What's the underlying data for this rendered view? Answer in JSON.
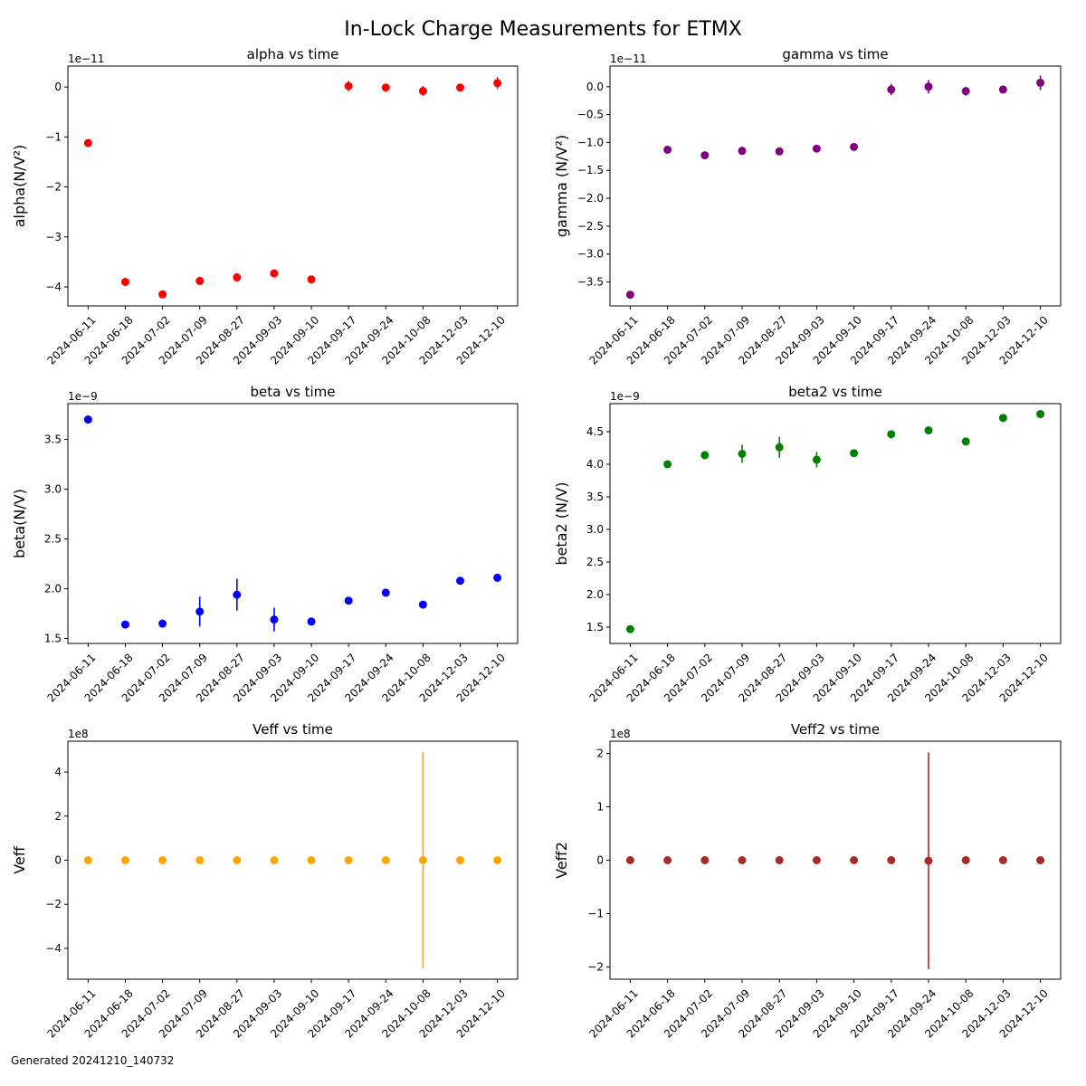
{
  "figure": {
    "title": "In-Lock Charge Measurements for ETMX",
    "footer": "Generated 20241210_140732"
  },
  "chart_data": [
    {
      "type": "scatter",
      "title": "alpha vs time",
      "xlabel": "",
      "ylabel": "alpha(N/V²)",
      "offset_label": "1e−11",
      "color": "#ff0000",
      "categories": [
        "2024-06-11",
        "2024-06-18",
        "2024-07-02",
        "2024-07-09",
        "2024-08-27",
        "2024-09-03",
        "2024-09-10",
        "2024-09-17",
        "2024-09-24",
        "2024-10-08",
        "2024-12-03",
        "2024-12-10"
      ],
      "values": [
        -1.12,
        -3.9,
        -4.15,
        -3.88,
        -3.81,
        -3.73,
        -3.85,
        0.02,
        -0.01,
        -0.08,
        -0.01,
        0.08
      ],
      "errors": [
        0.03,
        0.03,
        0.03,
        0.03,
        0.03,
        0.03,
        0.03,
        0.1,
        0.08,
        0.1,
        0.05,
        0.12
      ],
      "ylim": [
        -4.38,
        0.42
      ],
      "yticks": [
        0,
        -1,
        -2,
        -3,
        -4
      ],
      "ytick_labels": [
        "0",
        "−1",
        "−2",
        "−3",
        "−4"
      ],
      "grid": false
    },
    {
      "type": "scatter",
      "title": "gamma vs time",
      "xlabel": "",
      "ylabel": "gamma (N/V²)",
      "offset_label": "1e−11",
      "color": "#800080",
      "categories": [
        "2024-06-11",
        "2024-06-18",
        "2024-07-02",
        "2024-07-09",
        "2024-08-27",
        "2024-09-03",
        "2024-09-10",
        "2024-09-17",
        "2024-09-24",
        "2024-10-08",
        "2024-12-03",
        "2024-12-10"
      ],
      "values": [
        -3.73,
        -1.13,
        -1.23,
        -1.15,
        -1.16,
        -1.11,
        -1.08,
        -0.05,
        0.0,
        -0.08,
        -0.05,
        0.07
      ],
      "errors": [
        0.02,
        0.03,
        0.03,
        0.03,
        0.03,
        0.03,
        0.03,
        0.1,
        0.12,
        0.08,
        0.05,
        0.13
      ],
      "ylim": [
        -3.93,
        0.37
      ],
      "yticks": [
        0.0,
        -0.5,
        -1.0,
        -1.5,
        -2.0,
        -2.5,
        -3.0,
        -3.5
      ],
      "ytick_labels": [
        "0.0",
        "−0.5",
        "−1.0",
        "−1.5",
        "−2.0",
        "−2.5",
        "−3.0",
        "−3.5"
      ],
      "grid": false
    },
    {
      "type": "scatter",
      "title": "beta vs time",
      "xlabel": "",
      "ylabel": "beta(N/V)",
      "offset_label": "1e−9",
      "color": "#0000ff",
      "categories": [
        "2024-06-11",
        "2024-06-18",
        "2024-07-02",
        "2024-07-09",
        "2024-08-27",
        "2024-09-03",
        "2024-09-10",
        "2024-09-17",
        "2024-09-24",
        "2024-10-08",
        "2024-12-03",
        "2024-12-10"
      ],
      "values": [
        3.7,
        1.64,
        1.65,
        1.77,
        1.94,
        1.69,
        1.67,
        1.88,
        1.96,
        1.84,
        2.08,
        2.11
      ],
      "errors": [
        0.04,
        0.03,
        0.03,
        0.15,
        0.16,
        0.12,
        0.03,
        0.03,
        0.03,
        0.03,
        0.03,
        0.03
      ],
      "ylim": [
        1.45,
        3.86
      ],
      "yticks": [
        1.5,
        2.0,
        2.5,
        3.0,
        3.5
      ],
      "ytick_labels": [
        "1.5",
        "2.0",
        "2.5",
        "3.0",
        "3.5"
      ],
      "grid": false
    },
    {
      "type": "scatter",
      "title": "beta2 vs time",
      "xlabel": "",
      "ylabel": "beta2 (N/V)",
      "offset_label": "1e−9",
      "color": "#008000",
      "categories": [
        "2024-06-11",
        "2024-06-18",
        "2024-07-02",
        "2024-07-09",
        "2024-08-27",
        "2024-09-03",
        "2024-09-10",
        "2024-09-17",
        "2024-09-24",
        "2024-10-08",
        "2024-12-03",
        "2024-12-10"
      ],
      "values": [
        1.47,
        4.0,
        4.14,
        4.16,
        4.26,
        4.07,
        4.17,
        4.46,
        4.52,
        4.35,
        4.71,
        4.77
      ],
      "errors": [
        0.03,
        0.03,
        0.03,
        0.14,
        0.16,
        0.12,
        0.03,
        0.03,
        0.03,
        0.03,
        0.03,
        0.03
      ],
      "ylim": [
        1.25,
        4.93
      ],
      "yticks": [
        1.5,
        2.0,
        2.5,
        3.0,
        3.5,
        4.0,
        4.5
      ],
      "ytick_labels": [
        "1.5",
        "2.0",
        "2.5",
        "3.0",
        "3.5",
        "4.0",
        "4.5"
      ],
      "grid": false
    },
    {
      "type": "scatter",
      "title": "Veff vs time",
      "xlabel": "",
      "ylabel": "Veff",
      "offset_label": "1e8",
      "color": "#ffa500",
      "categories": [
        "2024-06-11",
        "2024-06-18",
        "2024-07-02",
        "2024-07-09",
        "2024-08-27",
        "2024-09-03",
        "2024-09-10",
        "2024-09-17",
        "2024-09-24",
        "2024-10-08",
        "2024-12-03",
        "2024-12-10"
      ],
      "values": [
        0,
        0,
        0,
        0,
        0,
        0,
        0,
        0,
        0,
        0,
        0,
        0
      ],
      "errors": [
        0,
        0,
        0,
        0,
        0,
        0,
        0,
        0,
        0,
        4.9,
        0,
        0
      ],
      "ylim": [
        -5.4,
        5.4
      ],
      "yticks": [
        4,
        2,
        0,
        -2,
        -4
      ],
      "ytick_labels": [
        "4",
        "2",
        "0",
        "−2",
        "−4"
      ],
      "grid": false
    },
    {
      "type": "scatter",
      "title": "Veff2 vs time",
      "xlabel": "",
      "ylabel": "Veff2",
      "offset_label": "1e8",
      "color": "#a52a2a",
      "categories": [
        "2024-06-11",
        "2024-06-18",
        "2024-07-02",
        "2024-07-09",
        "2024-08-27",
        "2024-09-03",
        "2024-09-10",
        "2024-09-17",
        "2024-09-24",
        "2024-10-08",
        "2024-12-03",
        "2024-12-10"
      ],
      "values": [
        0,
        0,
        0,
        0,
        0,
        0,
        0,
        0,
        -0.01,
        0,
        0,
        0
      ],
      "errors": [
        0,
        0,
        0,
        0,
        0,
        0,
        0,
        0,
        2.03,
        0,
        0,
        0
      ],
      "ylim": [
        -2.23,
        2.23
      ],
      "yticks": [
        2,
        1,
        0,
        -1,
        -2
      ],
      "ytick_labels": [
        "2",
        "1",
        "0",
        "−1",
        "−2"
      ],
      "grid": false
    }
  ]
}
